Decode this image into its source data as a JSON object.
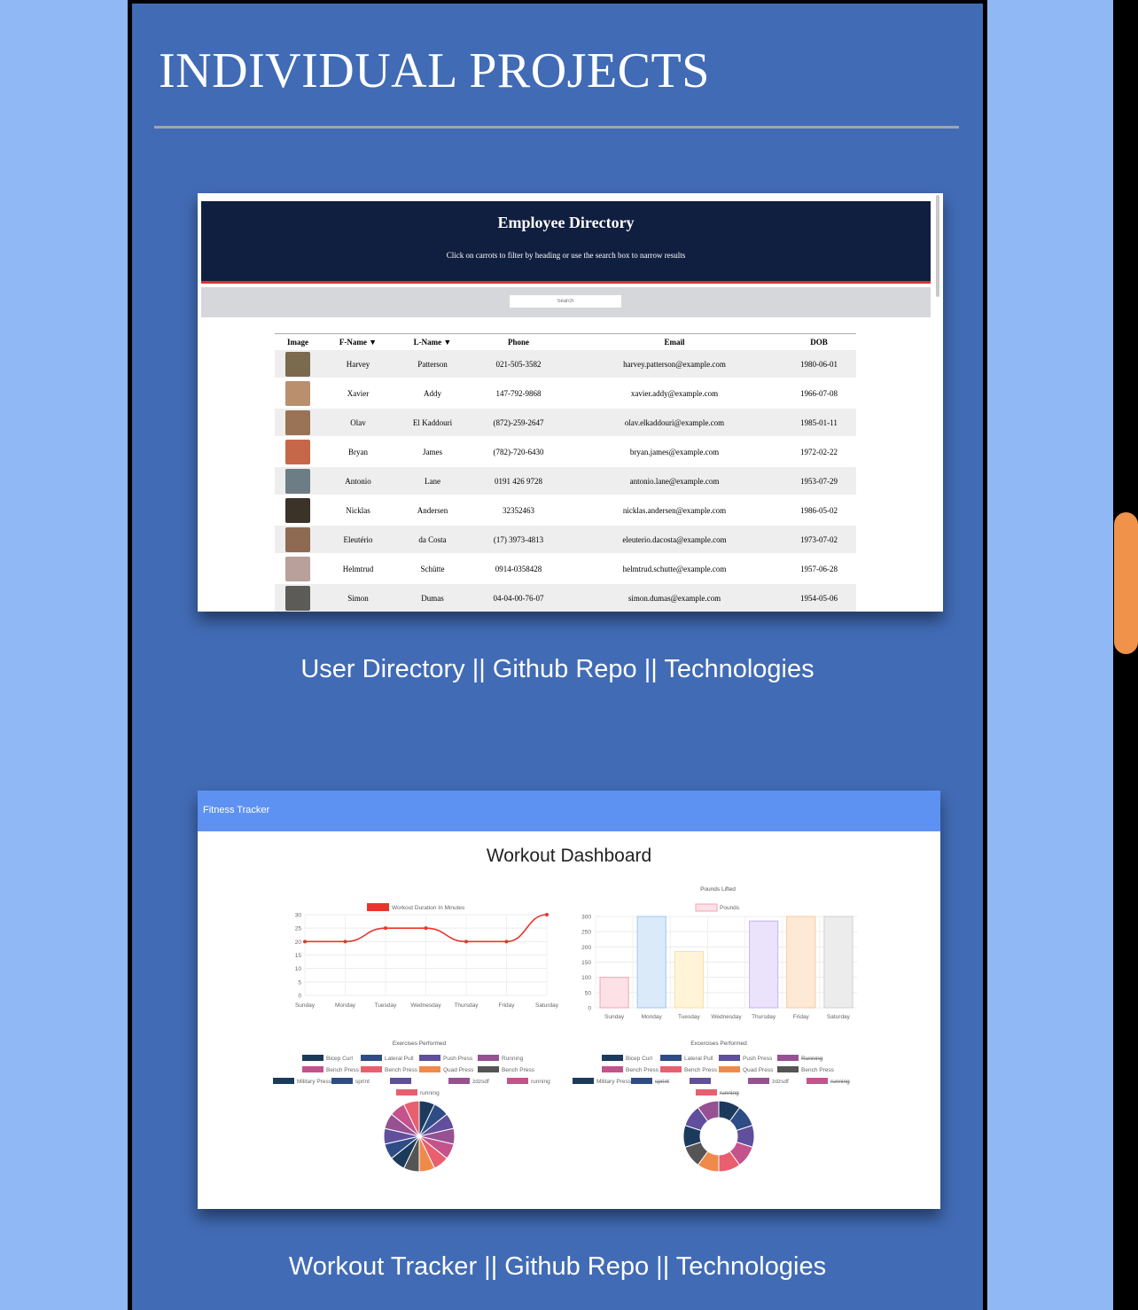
{
  "section": {
    "title": "INDIVIDUAL PROJECTS"
  },
  "projects": [
    {
      "title": "User Directory",
      "links": [
        "Github Repo",
        "Technologies"
      ],
      "preview": {
        "title": "Employee Directory",
        "subtitle": "Click on carrots to filter by heading or use the search box to narrow results",
        "search_placeholder": "Search",
        "columns": [
          "Image",
          "F-Name ▼",
          "L-Name ▼",
          "Phone",
          "Email",
          "DOB"
        ],
        "rows": [
          {
            "first": "Harvey",
            "last": "Patterson",
            "phone": "021-505-3582",
            "email": "harvey.patterson@example.com",
            "dob": "1980-06-01"
          },
          {
            "first": "Xavier",
            "last": "Addy",
            "phone": "147-792-9868",
            "email": "xavier.addy@example.com",
            "dob": "1966-07-08"
          },
          {
            "first": "Olav",
            "last": "El Kaddouri",
            "phone": "(872)-259-2647",
            "email": "olav.elkaddouri@example.com",
            "dob": "1985-01-11"
          },
          {
            "first": "Bryan",
            "last": "James",
            "phone": "(782)-720-6430",
            "email": "bryan.james@example.com",
            "dob": "1972-02-22"
          },
          {
            "first": "Antonio",
            "last": "Lane",
            "phone": "0191 426 9728",
            "email": "antonio.lane@example.com",
            "dob": "1953-07-29"
          },
          {
            "first": "Nicklas",
            "last": "Andersen",
            "phone": "32352463",
            "email": "nicklas.andersen@example.com",
            "dob": "1986-05-02"
          },
          {
            "first": "Eleutério",
            "last": "da Costa",
            "phone": "(17) 3973-4813",
            "email": "eleuterio.dacosta@example.com",
            "dob": "1973-07-02"
          },
          {
            "first": "Helmtrud",
            "last": "Schütte",
            "phone": "0914-0358428",
            "email": "helmtrud.schutte@example.com",
            "dob": "1957-06-28"
          },
          {
            "first": "Simon",
            "last": "Dumas",
            "phone": "04-04-00-76-07",
            "email": "simon.dumas@example.com",
            "dob": "1954-05-06"
          }
        ]
      }
    },
    {
      "title": "Workout Tracker",
      "links": [
        "Github Repo",
        "Technologies"
      ],
      "preview": {
        "brand": "Fitness Tracker",
        "title": "Workout Dashboard"
      }
    }
  ],
  "chart_data": [
    {
      "type": "line",
      "legend": [
        "Workout Duration In Minutes"
      ],
      "categories": [
        "Sunday",
        "Monday",
        "Tuesday",
        "Wednesday",
        "Thursday",
        "Friday",
        "Saturday"
      ],
      "series": [
        {
          "name": "Workout Duration In Minutes",
          "values": [
            20,
            20,
            25,
            25,
            20,
            20,
            30
          ],
          "color": "#e8352c"
        }
      ],
      "ylim": [
        0,
        30
      ],
      "yticks": [
        0,
        5,
        10,
        15,
        20,
        25,
        30
      ],
      "grid": true
    },
    {
      "type": "bar",
      "title": "Pounds Lifted",
      "legend": [
        "Pounds"
      ],
      "categories": [
        "Sunday",
        "Monday",
        "Tuesday",
        "Wednesday",
        "Thursday",
        "Friday",
        "Saturday"
      ],
      "values": [
        100,
        300,
        185,
        0,
        285,
        300,
        300
      ],
      "fills": [
        "#fde1e6",
        "#dbeaf9",
        "#fff4d8",
        "#e0f4f4",
        "#ebe2fc",
        "#fde9d6",
        "#ececec"
      ],
      "strokes": [
        "#f2a4b5",
        "#9cc7ef",
        "#fbe0a0",
        "#9fd9d9",
        "#c5b2f7",
        "#f8c9a0",
        "#cfcfcf"
      ],
      "ylim": [
        0,
        300
      ],
      "yticks": [
        0,
        50,
        100,
        150,
        200,
        250,
        300
      ],
      "grid": true
    },
    {
      "type": "pie",
      "title": "Exercises Performed",
      "legend": [
        "Bicep Curl",
        "Lateral Pull",
        "Push Press",
        "Running",
        "Bench Press",
        "Bench Press",
        "Quad Press",
        "Bench Press",
        "Military Press",
        "sprint",
        "",
        "zdzsdf",
        "running",
        "running"
      ],
      "values": [
        1,
        1,
        1,
        1,
        1,
        1,
        1,
        1,
        1,
        1,
        1,
        1,
        1,
        1
      ],
      "colors": [
        "#1c3b5c",
        "#2e4d86",
        "#5f4f9c",
        "#965192",
        "#c4528b",
        "#e85f6f",
        "#f08a4b",
        "#555555",
        "#1c3b5c",
        "#2e4d86",
        "#5f4f9c",
        "#965192",
        "#c4528b",
        "#e85f6f"
      ]
    },
    {
      "type": "doughnut",
      "title": "Excercises Performed",
      "legend": [
        "Bicep Curl",
        "Lateral Pull",
        "Push Press",
        "Running",
        "Bench Press",
        "Bench Press",
        "Quad Press",
        "Bench Press",
        "Military Press",
        "sprint",
        "",
        "zdzsdf",
        "running",
        "running"
      ],
      "hidden": [
        3,
        9,
        12,
        13
      ],
      "values": [
        1,
        1,
        1,
        1,
        1,
        1,
        1,
        1,
        1,
        1,
        1,
        1,
        1,
        1
      ],
      "colors": [
        "#1c3b5c",
        "#2e4d86",
        "#5f4f9c",
        "#965192",
        "#c4528b",
        "#e85f6f",
        "#f08a4b",
        "#555555",
        "#1c3b5c",
        "#2e4d86",
        "#5f4f9c",
        "#965192",
        "#c4528b",
        "#e85f6f"
      ]
    }
  ],
  "avatar_colors": [
    "#7a6a4e",
    "#b98f6e",
    "#9a7256",
    "#c7674a",
    "#6d7d85",
    "#3b3328",
    "#8e6a52",
    "#b9a09a",
    "#5d5b58"
  ]
}
